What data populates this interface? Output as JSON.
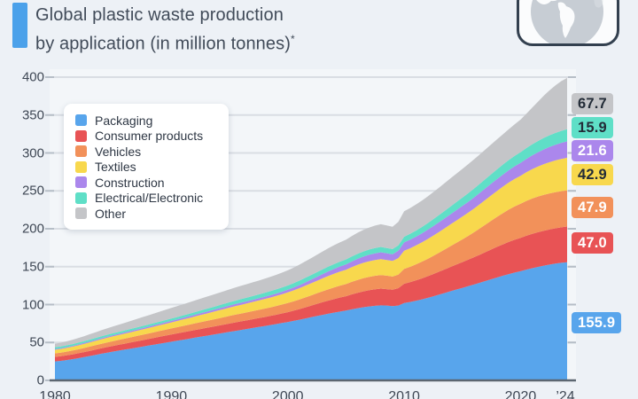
{
  "header": {
    "title_line1": "Global plastic waste production",
    "title_line2": "by application (in million tonnes)",
    "footnote_marker": "*",
    "accent_color": "#4ba1ea"
  },
  "globe": {
    "icon_name": "globe-americas-icon"
  },
  "colors": {
    "background": "#edf1f6",
    "plot_background": "#f3f6f9",
    "gridline": "#d9dde3",
    "axis_line": "#5c6671",
    "tick": "#b6bec7",
    "axis_label_text": "#3e4754",
    "legend_text": "#2e3744",
    "legend_background": "#ffffff"
  },
  "chart_data": {
    "type": "area",
    "stacked": true,
    "title": "Global plastic waste production by application (in million tonnes)",
    "unit": "million tonnes",
    "grid": true,
    "legend_position": "upper-left",
    "xlim": [
      1980,
      2024
    ],
    "ylim": [
      0,
      400
    ],
    "y_ticks": [
      0,
      50,
      100,
      150,
      200,
      250,
      300,
      350,
      400
    ],
    "x_ticks": [
      {
        "year": 1980,
        "label": "1980"
      },
      {
        "year": 1990,
        "label": "1990"
      },
      {
        "year": 2000,
        "label": "2000"
      },
      {
        "year": 2010,
        "label": "2010"
      },
      {
        "year": 2020,
        "label": "2020"
      },
      {
        "year": 2024,
        "label": "’24"
      }
    ],
    "x": [
      1980,
      1985,
      1990,
      1995,
      2000,
      2005,
      2008,
      2009,
      2010,
      2015,
      2020,
      2024
    ],
    "series": [
      {
        "name": "Packaging",
        "color": "#58a5ec",
        "value_2024": 155.9,
        "value_label": "155.9",
        "badge_text_color": "#ffffff",
        "values": [
          25.0,
          38.0,
          51.0,
          64.0,
          77.0,
          92.0,
          99.0,
          98.0,
          102.0,
          122.0,
          144.0,
          155.9
        ]
      },
      {
        "name": "Consumer products",
        "color": "#e85355",
        "value_2024": 47.0,
        "value_label": "47.0",
        "badge_text_color": "#ffffff",
        "values": [
          6.0,
          7.5,
          9.5,
          11.0,
          13.0,
          19.0,
          22.0,
          21.5,
          25.5,
          34.0,
          44.0,
          47.0
        ]
      },
      {
        "name": "Vehicles",
        "color": "#f2915a",
        "value_2024": 47.9,
        "value_label": "47.9",
        "badge_text_color": "#ffffff",
        "values": [
          4.7,
          6.3,
          8.0,
          10.0,
          12.0,
          16.0,
          18.0,
          17.5,
          19.5,
          30.0,
          45.0,
          47.9
        ]
      },
      {
        "name": "Textiles",
        "color": "#f8d84d",
        "value_2024": 42.9,
        "value_label": "42.9",
        "badge_text_color": "#232c38",
        "values": [
          4.7,
          6.3,
          8.0,
          11.0,
          14.0,
          19.0,
          21.0,
          20.5,
          24.0,
          30.0,
          37.0,
          42.9
        ]
      },
      {
        "name": "Construction",
        "color": "#ab87ec",
        "value_2024": 21.6,
        "value_label": "21.6",
        "badge_text_color": "#ffffff",
        "values": [
          1.0,
          1.5,
          2.0,
          2.7,
          3.5,
          7.0,
          9.0,
          8.8,
          11.0,
          14.0,
          17.0,
          21.6
        ]
      },
      {
        "name": "Electrical/Electronic",
        "color": "#5fdfc7",
        "value_2024": 15.9,
        "value_label": "15.9",
        "badge_text_color": "#232c38",
        "values": [
          2.3,
          2.6,
          3.0,
          4.3,
          5.7,
          6.5,
          7.0,
          6.9,
          7.5,
          11.0,
          14.0,
          15.9
        ]
      },
      {
        "name": "Other",
        "color": "#c4c5c8",
        "value_2024": 67.7,
        "value_label": "67.7",
        "badge_text_color": "#232c38",
        "values": [
          4.7,
          9.0,
          14.0,
          17.0,
          20.0,
          26.0,
          30.0,
          29.5,
          33.5,
          38.0,
          43.0,
          67.7
        ]
      }
    ],
    "total_2024": 398.9
  }
}
